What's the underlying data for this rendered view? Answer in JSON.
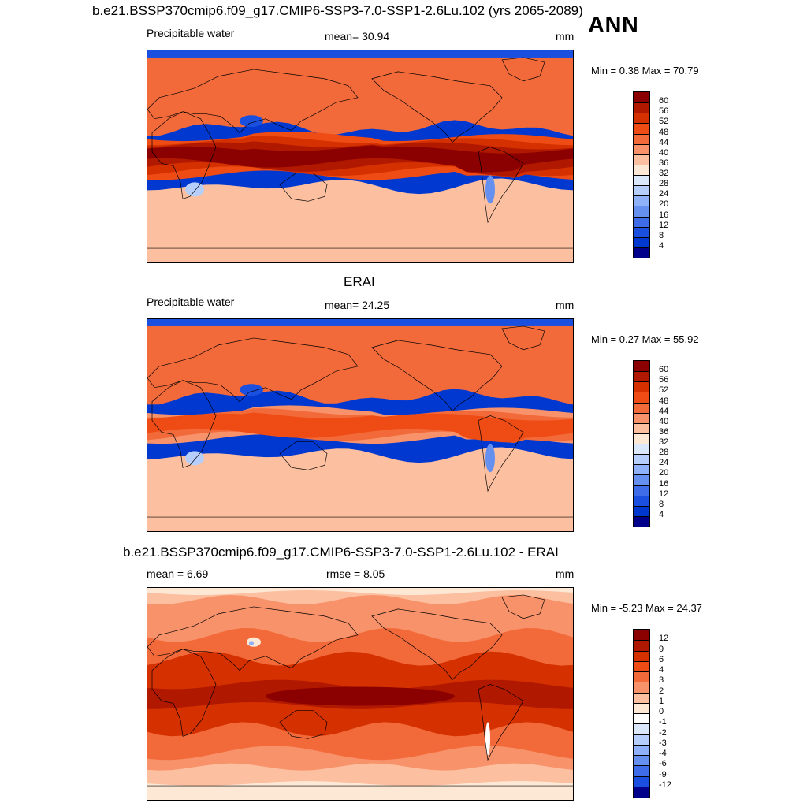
{
  "header": {
    "title": "b.e21.BSSP370cmip6.f09_g17.CMIP6-SSP3-7.0-SSP1-2.6Lu.102 (yrs 2065-2089)",
    "season": "ANN"
  },
  "panels": [
    {
      "id": "model",
      "title": "",
      "left_label": "Precipitable water",
      "center_label": "mean=  30.94",
      "right_label": "mm",
      "minmax_label": "Min =   0.38 Max =  70.79",
      "mean": 30.94,
      "min": 0.38,
      "max": 70.79,
      "colorbar": {
        "levels": [
          "60",
          "56",
          "52",
          "48",
          "44",
          "40",
          "36",
          "32",
          "28",
          "24",
          "20",
          "16",
          "12",
          "8",
          "4"
        ],
        "colors": [
          "#8b0000",
          "#b01800",
          "#d43000",
          "#ee4c14",
          "#f26a3a",
          "#f8926a",
          "#fcc0a0",
          "#fde8d6",
          "#dbe8fb",
          "#b6cefb",
          "#8eb1f9",
          "#6690f0",
          "#3f6ce8",
          "#1a4fe0",
          "#0038d0",
          "#00008b"
        ]
      }
    },
    {
      "id": "obs",
      "title": "ERAI",
      "left_label": "Precipitable water",
      "center_label": "mean=  24.25",
      "right_label": "mm",
      "minmax_label": "Min =   0.27 Max =  55.92",
      "mean": 24.25,
      "min": 0.27,
      "max": 55.92,
      "colorbar": {
        "levels": [
          "60",
          "56",
          "52",
          "48",
          "44",
          "40",
          "36",
          "32",
          "28",
          "24",
          "20",
          "16",
          "12",
          "8",
          "4"
        ],
        "colors": [
          "#8b0000",
          "#b01800",
          "#d43000",
          "#ee4c14",
          "#f26a3a",
          "#f8926a",
          "#fcc0a0",
          "#fde8d6",
          "#dbe8fb",
          "#b6cefb",
          "#8eb1f9",
          "#6690f0",
          "#3f6ce8",
          "#1a4fe0",
          "#0038d0",
          "#00008b"
        ]
      }
    },
    {
      "id": "diff",
      "title": "b.e21.BSSP370cmip6.f09_g17.CMIP6-SSP3-7.0-SSP1-2.6Lu.102 - ERAI",
      "left_label": "mean =   6.69",
      "center_label": "rmse =   8.05",
      "right_label": "mm",
      "minmax_label": "Min =  -5.23 Max =  24.37",
      "mean": 6.69,
      "rmse": 8.05,
      "min": -5.23,
      "max": 24.37,
      "colorbar": {
        "levels": [
          "12",
          "9",
          "6",
          "4",
          "3",
          "2",
          "1",
          "0",
          "-1",
          "-2",
          "-3",
          "-4",
          "-6",
          "-9",
          "-12"
        ],
        "colors": [
          "#8b0000",
          "#b01800",
          "#d43000",
          "#ee4c14",
          "#f26a3a",
          "#f8926a",
          "#fcc0a0",
          "#fde8d6",
          "#ffffff",
          "#dbe8fb",
          "#b6cefb",
          "#8eb1f9",
          "#6690f0",
          "#3f6ce8",
          "#1a4fe0",
          "#00008b"
        ]
      }
    }
  ]
}
